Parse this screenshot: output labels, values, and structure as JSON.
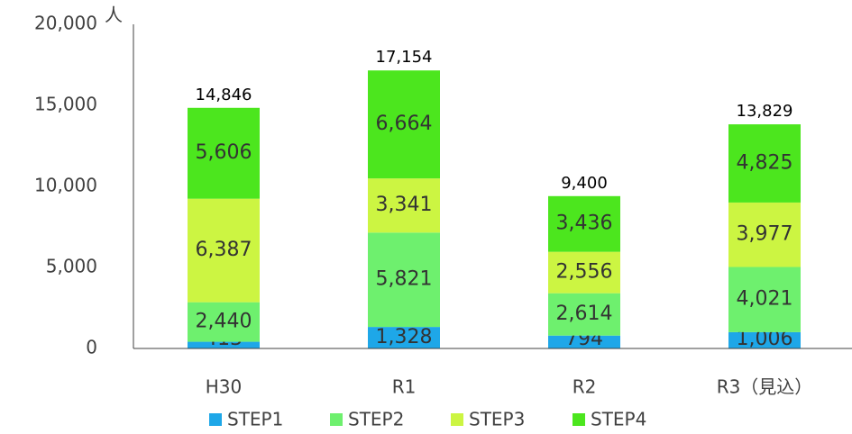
{
  "chart_data": {
    "type": "stacked_bar",
    "y_unit": "人",
    "categories": [
      "H30",
      "R1",
      "R2",
      "R3（見込）"
    ],
    "series": [
      {
        "name": "STEP1",
        "color": "#1ea7e8",
        "values": [
          413,
          1328,
          794,
          1006
        ],
        "value_labels": [
          "413",
          "1,328",
          "794",
          "1,006"
        ]
      },
      {
        "name": "STEP2",
        "color": "#6ef06e",
        "values": [
          2440,
          5821,
          2614,
          4021
        ],
        "value_labels": [
          "2,440",
          "5,821",
          "2,614",
          "4,021"
        ]
      },
      {
        "name": "STEP3",
        "color": "#ccf542",
        "values": [
          6387,
          3341,
          2556,
          3977
        ],
        "value_labels": [
          "6,387",
          "3,341",
          "2,556",
          "3,977"
        ]
      },
      {
        "name": "STEP4",
        "color": "#4ce61e",
        "values": [
          5606,
          6664,
          3436,
          4825
        ],
        "value_labels": [
          "5,606",
          "6,664",
          "3,436",
          "4,825"
        ]
      }
    ],
    "totals": [
      14846,
      17154,
      9400,
      13829
    ],
    "total_labels": [
      "14,846",
      "17,154",
      "9,400",
      "13,829"
    ],
    "ylim": [
      0,
      20000
    ],
    "yticks": [
      0,
      {
        "value": 5000,
        "label": "5,000"
      },
      {
        "value": 10000,
        "label": "10,000"
      },
      {
        "value": 15000,
        "label": "15,000"
      },
      {
        "value": 20000,
        "label": "20,000"
      }
    ],
    "grid": false,
    "legend": "bottom"
  }
}
